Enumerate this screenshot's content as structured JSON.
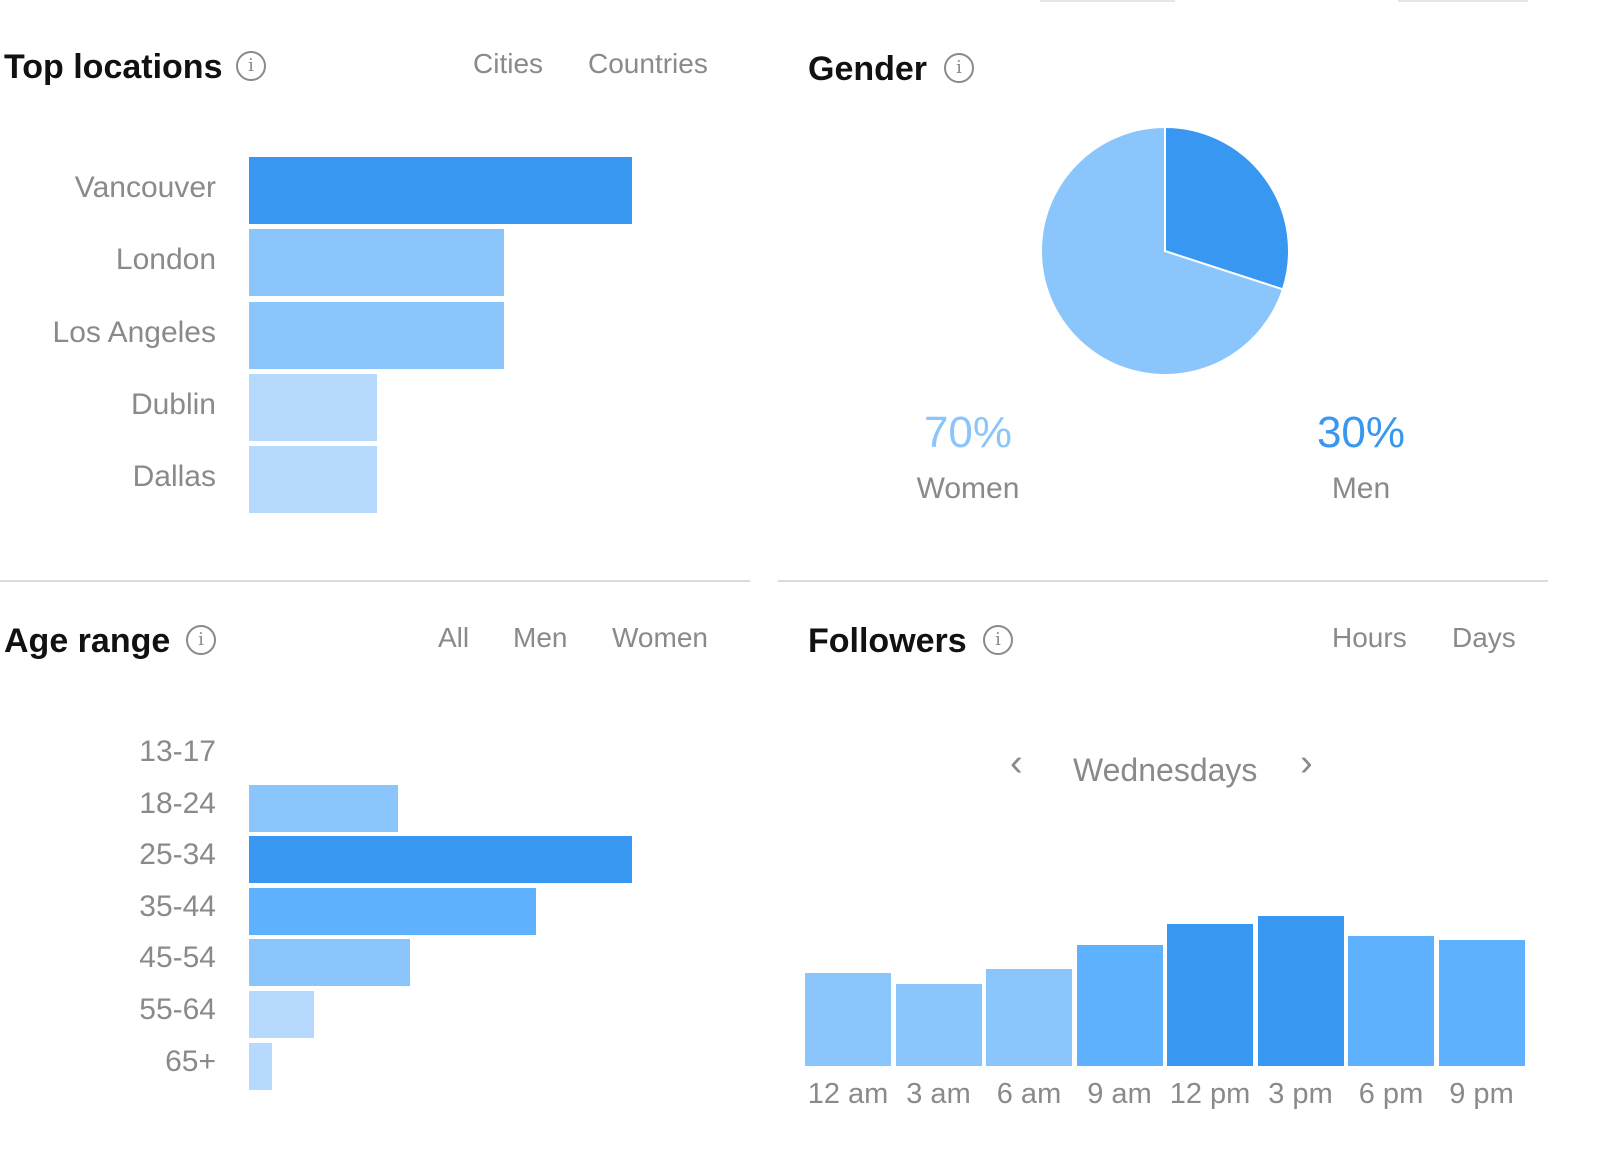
{
  "colors": {
    "accent": "#3897f0",
    "level1": "#3897f0",
    "level2": "#5eb1fc",
    "level3": "#8ac5fc",
    "level4": "#b6d9fd",
    "muted": "#8a8a8a",
    "title": "#111111"
  },
  "top_locations": {
    "title": "Top locations",
    "info_icon": "i",
    "tabs": [
      {
        "label": "Cities",
        "active": true
      },
      {
        "label": "Countries",
        "active": false
      }
    ],
    "chart_data": {
      "type": "bar",
      "orientation": "horizontal",
      "categories": [
        "Vancouver",
        "London",
        "Los Angeles",
        "Dublin",
        "Dallas"
      ],
      "values": [
        3,
        2,
        2,
        1,
        1
      ],
      "xlim": [
        0,
        3
      ]
    }
  },
  "gender": {
    "title": "Gender",
    "info_icon": "i",
    "chart_data": {
      "type": "pie",
      "series": [
        {
          "name": "Women",
          "value": 70,
          "label": "70%"
        },
        {
          "name": "Men",
          "value": 30,
          "label": "30%"
        }
      ]
    }
  },
  "age_range": {
    "title": "Age range",
    "info_icon": "i",
    "tabs": [
      {
        "label": "All",
        "active": true
      },
      {
        "label": "Men",
        "active": false
      },
      {
        "label": "Women",
        "active": false
      }
    ],
    "chart_data": {
      "type": "bar",
      "orientation": "horizontal",
      "categories": [
        "13-17",
        "18-24",
        "25-34",
        "35-44",
        "45-54",
        "55-64",
        "65+"
      ],
      "values": [
        0,
        39,
        100,
        75,
        42,
        17,
        6
      ],
      "xlim": [
        0,
        100
      ]
    }
  },
  "followers": {
    "title": "Followers",
    "info_icon": "i",
    "tabs": [
      {
        "label": "Hours",
        "active": true
      },
      {
        "label": "Days",
        "active": false
      }
    ],
    "day_selector": {
      "prev_icon": "‹",
      "label": "Wednesdays",
      "next_icon": "›"
    },
    "chart_data": {
      "type": "bar",
      "categories": [
        "12 am",
        "3 am",
        "6 am",
        "9 am",
        "12 pm",
        "3 pm",
        "6 pm",
        "9 pm"
      ],
      "values": [
        62,
        55,
        65,
        81,
        95,
        100,
        87,
        84
      ],
      "ylim": [
        0,
        100
      ]
    }
  }
}
